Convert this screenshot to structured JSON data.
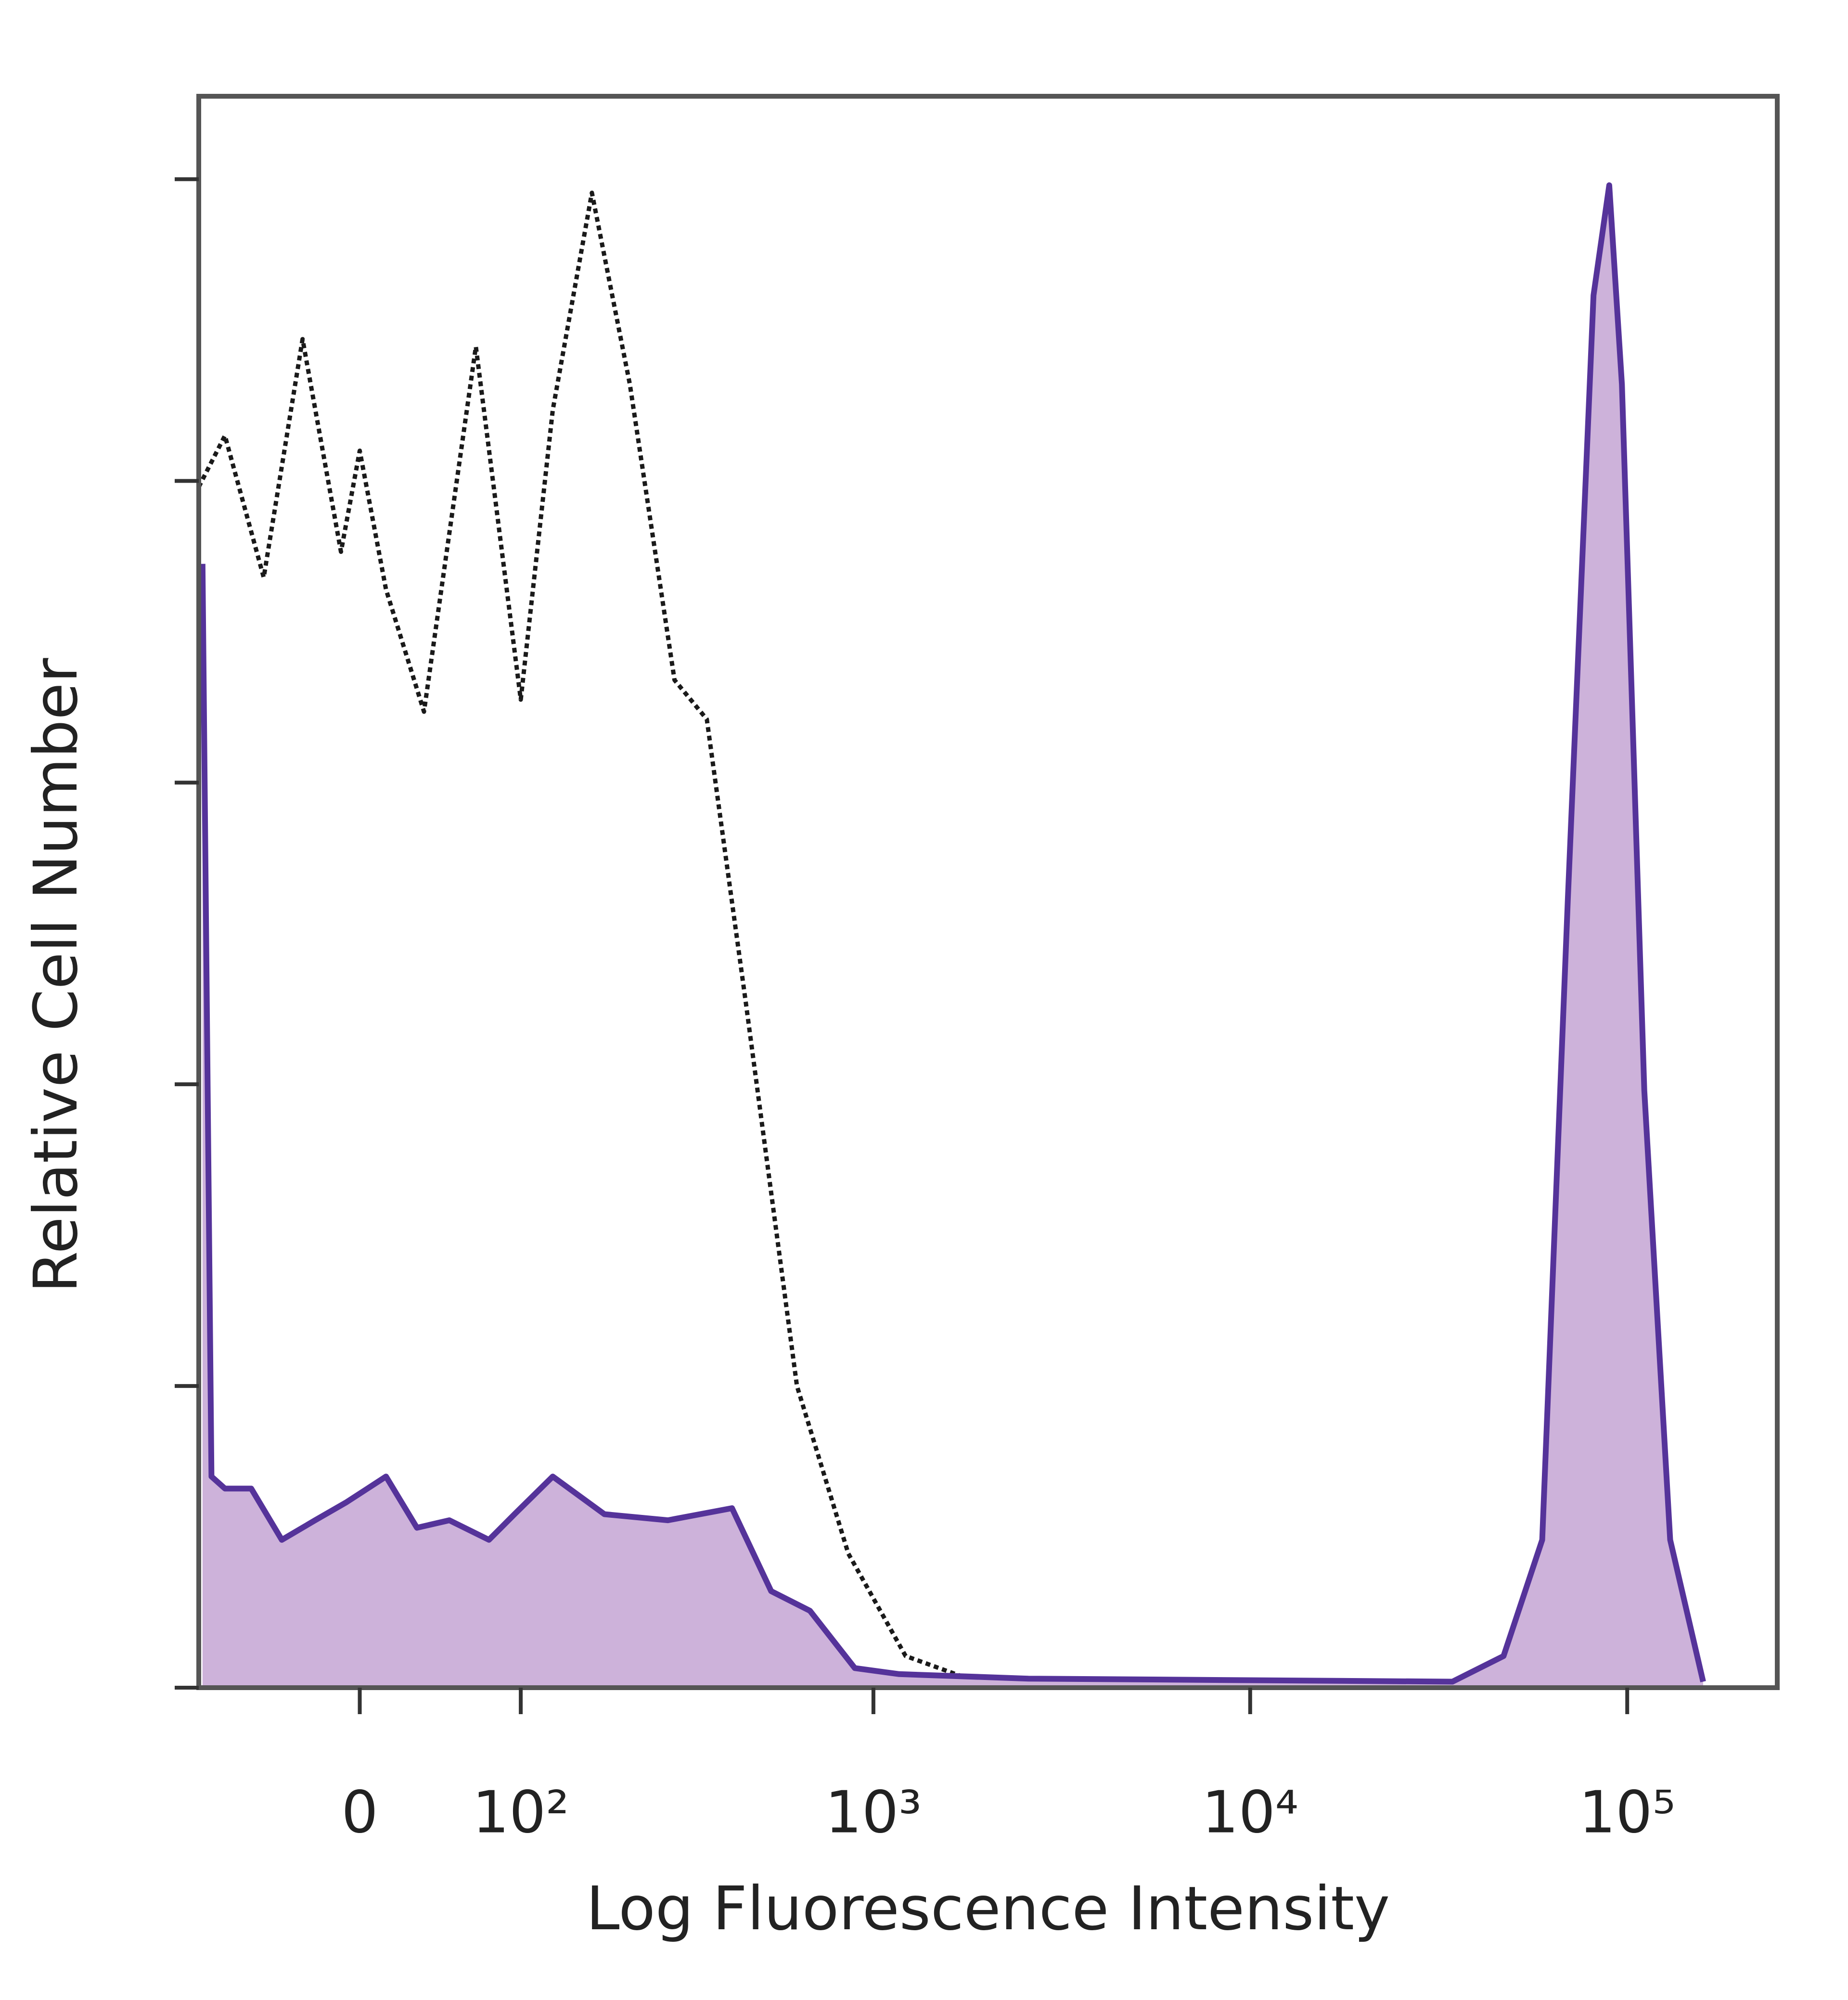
{
  "chart_data": {
    "type": "histogram-overlay",
    "xlabel": "Log Fluorescence Intensity",
    "ylabel": "Relative Cell Number",
    "xscale": "biexponential",
    "xlim": [
      -100,
      250000
    ],
    "xticks": [
      0,
      {
        "value": 100,
        "label": "10²"
      },
      {
        "value": 1000,
        "label": "10³"
      },
      {
        "value": 10000,
        "label": "10⁴"
      },
      {
        "value": 100000,
        "label": "10⁵"
      }
    ],
    "ylim": [
      0,
      105.5
    ],
    "yticks": [
      0,
      20,
      40,
      60,
      80,
      100
    ],
    "series": [
      {
        "color": "#1a1a1a",
        "linestyle": "dotted",
        "x": [
          -100,
          -80,
          -54,
          -31,
          -10,
          0,
          14,
          35,
          67,
          100,
          128,
          169,
          218,
          291,
          357,
          455,
          625,
          857,
          1218,
          1880,
          5650,
          12400,
          27200
        ],
        "values": [
          79.6,
          83,
          73.6,
          89.4,
          75.3,
          82,
          72.8,
          64.7,
          88.9,
          65.5,
          84.7,
          99.1,
          86.4,
          66.8,
          64.2,
          45.5,
          20,
          8.9,
          2.1,
          0.4,
          0.3,
          0.2,
          0.2
        ]
      },
      {
        "color": "#55339a",
        "fill": "#cdb2da",
        "linestyle": "solid",
        "x": [
          -97,
          -90,
          -80,
          -62,
          -43,
          -24,
          -7,
          14,
          31,
          50,
          76,
          95,
          128,
          184,
          279,
          418,
          533,
          677,
          892,
          1170,
          2580,
          34400,
          47000,
          59500,
          69600,
          81400,
          89600,
          96800,
          111000,
          130000,
          159000
        ],
        "values": [
          74.5,
          14,
          13.2,
          13.2,
          9.8,
          11.1,
          12.3,
          14,
          10.6,
          11.1,
          9.8,
          11.5,
          14,
          11.5,
          11.1,
          11.9,
          6.4,
          5.1,
          1.3,
          0.9,
          0.6,
          0.4,
          2.1,
          9.8,
          52.3,
          92.3,
          99.6,
          86.4,
          39.6,
          9.8,
          0.4
        ]
      }
    ]
  }
}
